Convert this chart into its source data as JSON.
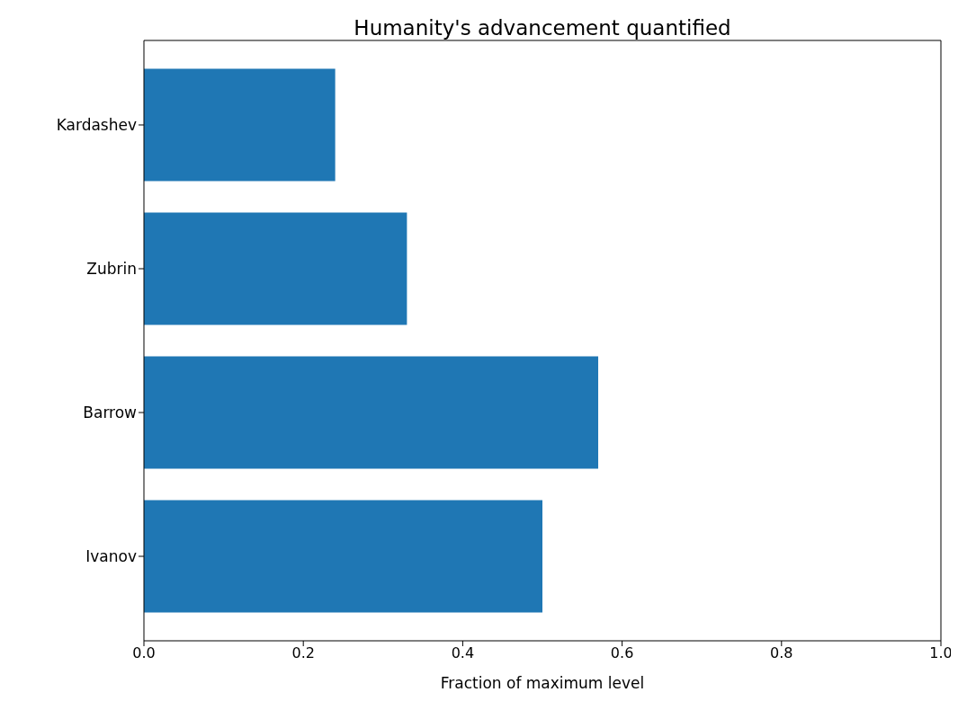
{
  "chart_data": {
    "type": "bar",
    "orientation": "horizontal",
    "title": "Humanity's advancement quantified",
    "xlabel": "Fraction of maximum level",
    "categories": [
      "Kardashev",
      "Zubrin",
      "Barrow",
      "Ivanov"
    ],
    "values": [
      0.24,
      0.33,
      0.57,
      0.5
    ],
    "color": "#1f77b4",
    "xlim": [
      0,
      1
    ],
    "xticks": [
      {
        "value": 0,
        "label": "0.0"
      },
      {
        "value": 0.2,
        "label": "0.2"
      },
      {
        "value": 0.4,
        "label": "0.4"
      },
      {
        "value": 0.6,
        "label": "0.6"
      },
      {
        "value": 0.8,
        "label": "0.8"
      },
      {
        "value": 1,
        "label": "1.0"
      }
    ],
    "grid": false
  }
}
